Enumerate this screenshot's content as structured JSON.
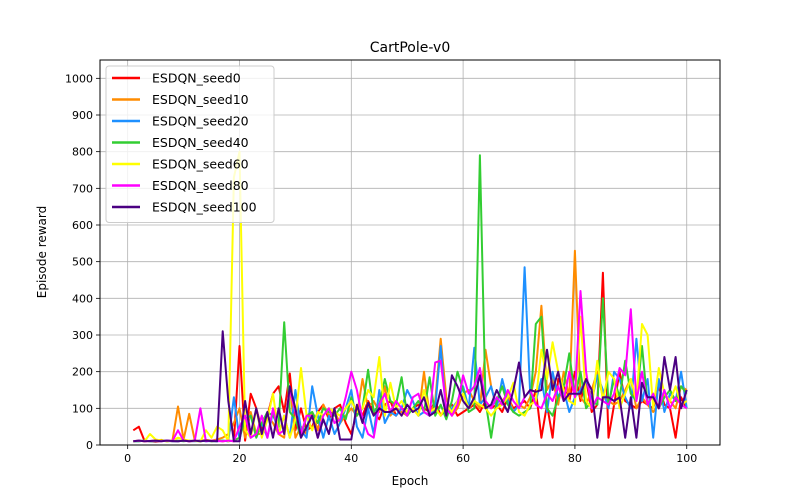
{
  "chart_data": {
    "type": "line",
    "title": "CartPole-v0",
    "xlabel": "Epoch",
    "ylabel": "Episode reward",
    "xlim": [
      -4.95,
      105.95
    ],
    "ylim": [
      0,
      1050
    ],
    "xticks": [
      0,
      20,
      40,
      60,
      80,
      100
    ],
    "yticks": [
      0,
      100,
      200,
      300,
      400,
      500,
      600,
      700,
      800,
      900,
      1000
    ],
    "grid": true,
    "legend_position": "top-left",
    "x": [
      1,
      2,
      3,
      4,
      5,
      6,
      7,
      8,
      9,
      10,
      11,
      12,
      13,
      14,
      15,
      16,
      17,
      18,
      19,
      20,
      21,
      22,
      23,
      24,
      25,
      26,
      27,
      28,
      29,
      30,
      31,
      32,
      33,
      34,
      35,
      36,
      37,
      38,
      39,
      40,
      41,
      42,
      43,
      44,
      45,
      46,
      47,
      48,
      49,
      50,
      51,
      52,
      53,
      54,
      55,
      56,
      57,
      58,
      59,
      60,
      61,
      62,
      63,
      64,
      65,
      66,
      67,
      68,
      69,
      70,
      71,
      72,
      73,
      74,
      75,
      76,
      77,
      78,
      79,
      80,
      81,
      82,
      83,
      84,
      85,
      86,
      87,
      88,
      89,
      90,
      91,
      92,
      93,
      94,
      95,
      96,
      97,
      98,
      99,
      100
    ],
    "series": [
      {
        "name": "ESDQN_seed0",
        "color": "#ff0000",
        "values": [
          40,
          50,
          12,
          10,
          9,
          11,
          12,
          10,
          10,
          12,
          10,
          11,
          12,
          13,
          10,
          12,
          10,
          12,
          10,
          270,
          12,
          140,
          100,
          40,
          80,
          140,
          160,
          90,
          195,
          40,
          100,
          40,
          50,
          90,
          110,
          70,
          100,
          110,
          60,
          30,
          90,
          80,
          120,
          90,
          70,
          110,
          120,
          80,
          100,
          90,
          100,
          110,
          100,
          90,
          120,
          80,
          100,
          110,
          80,
          90,
          100,
          110,
          90,
          120,
          100,
          110,
          90,
          130,
          100,
          110,
          120,
          100,
          150,
          20,
          110,
          20,
          180,
          160,
          120,
          200,
          120,
          180,
          90,
          110,
          470,
          20,
          110,
          200,
          120,
          110,
          100,
          120,
          110,
          100,
          160,
          110,
          100,
          20,
          130,
          100
        ]
      },
      {
        "name": "ESDQN_seed10",
        "color": "#ff8c00",
        "values": [
          10,
          12,
          10,
          11,
          12,
          14,
          10,
          12,
          105,
          15,
          85,
          12,
          10,
          14,
          12,
          15,
          20,
          30,
          60,
          100,
          20,
          90,
          30,
          30,
          80,
          60,
          30,
          20,
          160,
          20,
          50,
          30,
          90,
          40,
          110,
          80,
          90,
          60,
          80,
          100,
          80,
          180,
          100,
          120,
          90,
          160,
          80,
          100,
          90,
          80,
          100,
          80,
          200,
          80,
          120,
          290,
          130,
          80,
          100,
          140,
          150,
          120,
          100,
          260,
          160,
          100,
          120,
          140,
          90,
          110,
          100,
          130,
          200,
          380,
          150,
          180,
          110,
          200,
          130,
          530,
          130,
          110,
          150,
          200,
          130,
          120,
          110,
          120,
          150,
          180,
          100,
          130,
          110,
          90,
          110,
          140,
          120,
          100,
          160,
          150
        ]
      },
      {
        "name": "ESDQN_seed20",
        "color": "#1e90ff",
        "values": [
          10,
          10,
          12,
          10,
          10,
          11,
          12,
          10,
          10,
          12,
          11,
          10,
          12,
          10,
          11,
          10,
          12,
          10,
          130,
          15,
          80,
          20,
          30,
          60,
          20,
          90,
          30,
          80,
          20,
          150,
          40,
          20,
          160,
          80,
          20,
          80,
          30,
          60,
          100,
          150,
          50,
          20,
          100,
          30,
          150,
          60,
          90,
          80,
          100,
          150,
          120,
          80,
          90,
          80,
          100,
          270,
          80,
          100,
          120,
          160,
          100,
          265,
          110,
          130,
          160,
          100,
          180,
          120,
          90,
          110,
          485,
          140,
          120,
          180,
          90,
          200,
          130,
          150,
          90,
          130,
          150,
          180,
          120,
          190,
          150,
          100,
          200,
          180,
          130,
          100,
          290,
          120,
          180,
          20,
          180,
          90,
          140,
          120,
          200,
          100
        ]
      },
      {
        "name": "ESDQN_seed40",
        "color": "#32cd32",
        "values": [
          10,
          10,
          12,
          10,
          11,
          12,
          10,
          11,
          12,
          10,
          12,
          11,
          10,
          12,
          10,
          11,
          12,
          10,
          12,
          20,
          70,
          80,
          20,
          60,
          90,
          80,
          50,
          335,
          90,
          70,
          20,
          80,
          90,
          60,
          100,
          90,
          80,
          100,
          70,
          130,
          80,
          100,
          205,
          90,
          110,
          180,
          120,
          110,
          185,
          80,
          100,
          120,
          90,
          185,
          80,
          110,
          70,
          120,
          200,
          150,
          90,
          100,
          790,
          120,
          20,
          120,
          160,
          110,
          90,
          80,
          90,
          100,
          330,
          350,
          100,
          80,
          130,
          160,
          250,
          130,
          200,
          100,
          120,
          110,
          400,
          110,
          180,
          130,
          230,
          140,
          120,
          270,
          110,
          140,
          100,
          130,
          150,
          120,
          160,
          140
        ]
      },
      {
        "name": "ESDQN_seed60",
        "color": "#ffff00",
        "values": [
          10,
          12,
          10,
          30,
          15,
          12,
          10,
          12,
          20,
          15,
          12,
          11,
          10,
          40,
          20,
          50,
          40,
          10,
          730,
          800,
          40,
          20,
          100,
          20,
          70,
          140,
          30,
          80,
          20,
          70,
          210,
          80,
          40,
          90,
          80,
          100,
          90,
          80,
          100,
          120,
          90,
          100,
          150,
          130,
          240,
          80,
          170,
          100,
          120,
          90,
          100,
          80,
          150,
          90,
          100,
          80,
          110,
          90,
          120,
          140,
          100,
          120,
          110,
          100,
          80,
          100,
          110,
          130,
          170,
          90,
          80,
          110,
          120,
          260,
          180,
          280,
          200,
          150,
          120,
          110,
          350,
          120,
          100,
          230,
          120,
          200,
          180,
          100,
          140,
          180,
          120,
          330,
          300,
          100,
          210,
          140,
          120,
          160,
          110,
          120
        ]
      },
      {
        "name": "ESDQN_seed80",
        "color": "#ff00ff",
        "values": [
          10,
          12,
          10,
          11,
          12,
          10,
          12,
          11,
          40,
          12,
          10,
          12,
          100,
          10,
          12,
          11,
          10,
          12,
          10,
          50,
          80,
          20,
          30,
          80,
          20,
          100,
          30,
          40,
          150,
          90,
          30,
          80,
          80,
          20,
          80,
          100,
          60,
          70,
          130,
          200,
          150,
          70,
          30,
          20,
          110,
          140,
          90,
          120,
          100,
          80,
          130,
          140,
          90,
          80,
          225,
          230,
          100,
          80,
          110,
          190,
          140,
          160,
          210,
          120,
          100,
          130,
          110,
          150,
          120,
          100,
          130,
          150,
          110,
          100,
          140,
          120,
          160,
          120,
          200,
          130,
          420,
          200,
          100,
          130,
          120,
          110,
          140,
          210,
          190,
          370,
          120,
          200,
          110,
          140,
          100,
          150,
          100,
          130,
          110,
          100
        ]
      },
      {
        "name": "ESDQN_seed100",
        "color": "#4b0082",
        "values": [
          10,
          12,
          10,
          11,
          12,
          10,
          12,
          11,
          10,
          12,
          10,
          12,
          10,
          12,
          11,
          10,
          310,
          120,
          10,
          10,
          120,
          30,
          100,
          30,
          90,
          20,
          100,
          30,
          160,
          100,
          20,
          50,
          80,
          20,
          70,
          30,
          100,
          15,
          15,
          15,
          110,
          60,
          115,
          80,
          100,
          90,
          90,
          100,
          80,
          110,
          90,
          100,
          130,
          80,
          90,
          150,
          80,
          190,
          160,
          120,
          100,
          130,
          190,
          100,
          110,
          150,
          120,
          90,
          150,
          225,
          130,
          150,
          145,
          150,
          260,
          150,
          200,
          120,
          140,
          140,
          140,
          180,
          150,
          20,
          130,
          130,
          120,
          130,
          20,
          130,
          20,
          170,
          130,
          130,
          100,
          240,
          150,
          240,
          100,
          150
        ]
      }
    ]
  }
}
